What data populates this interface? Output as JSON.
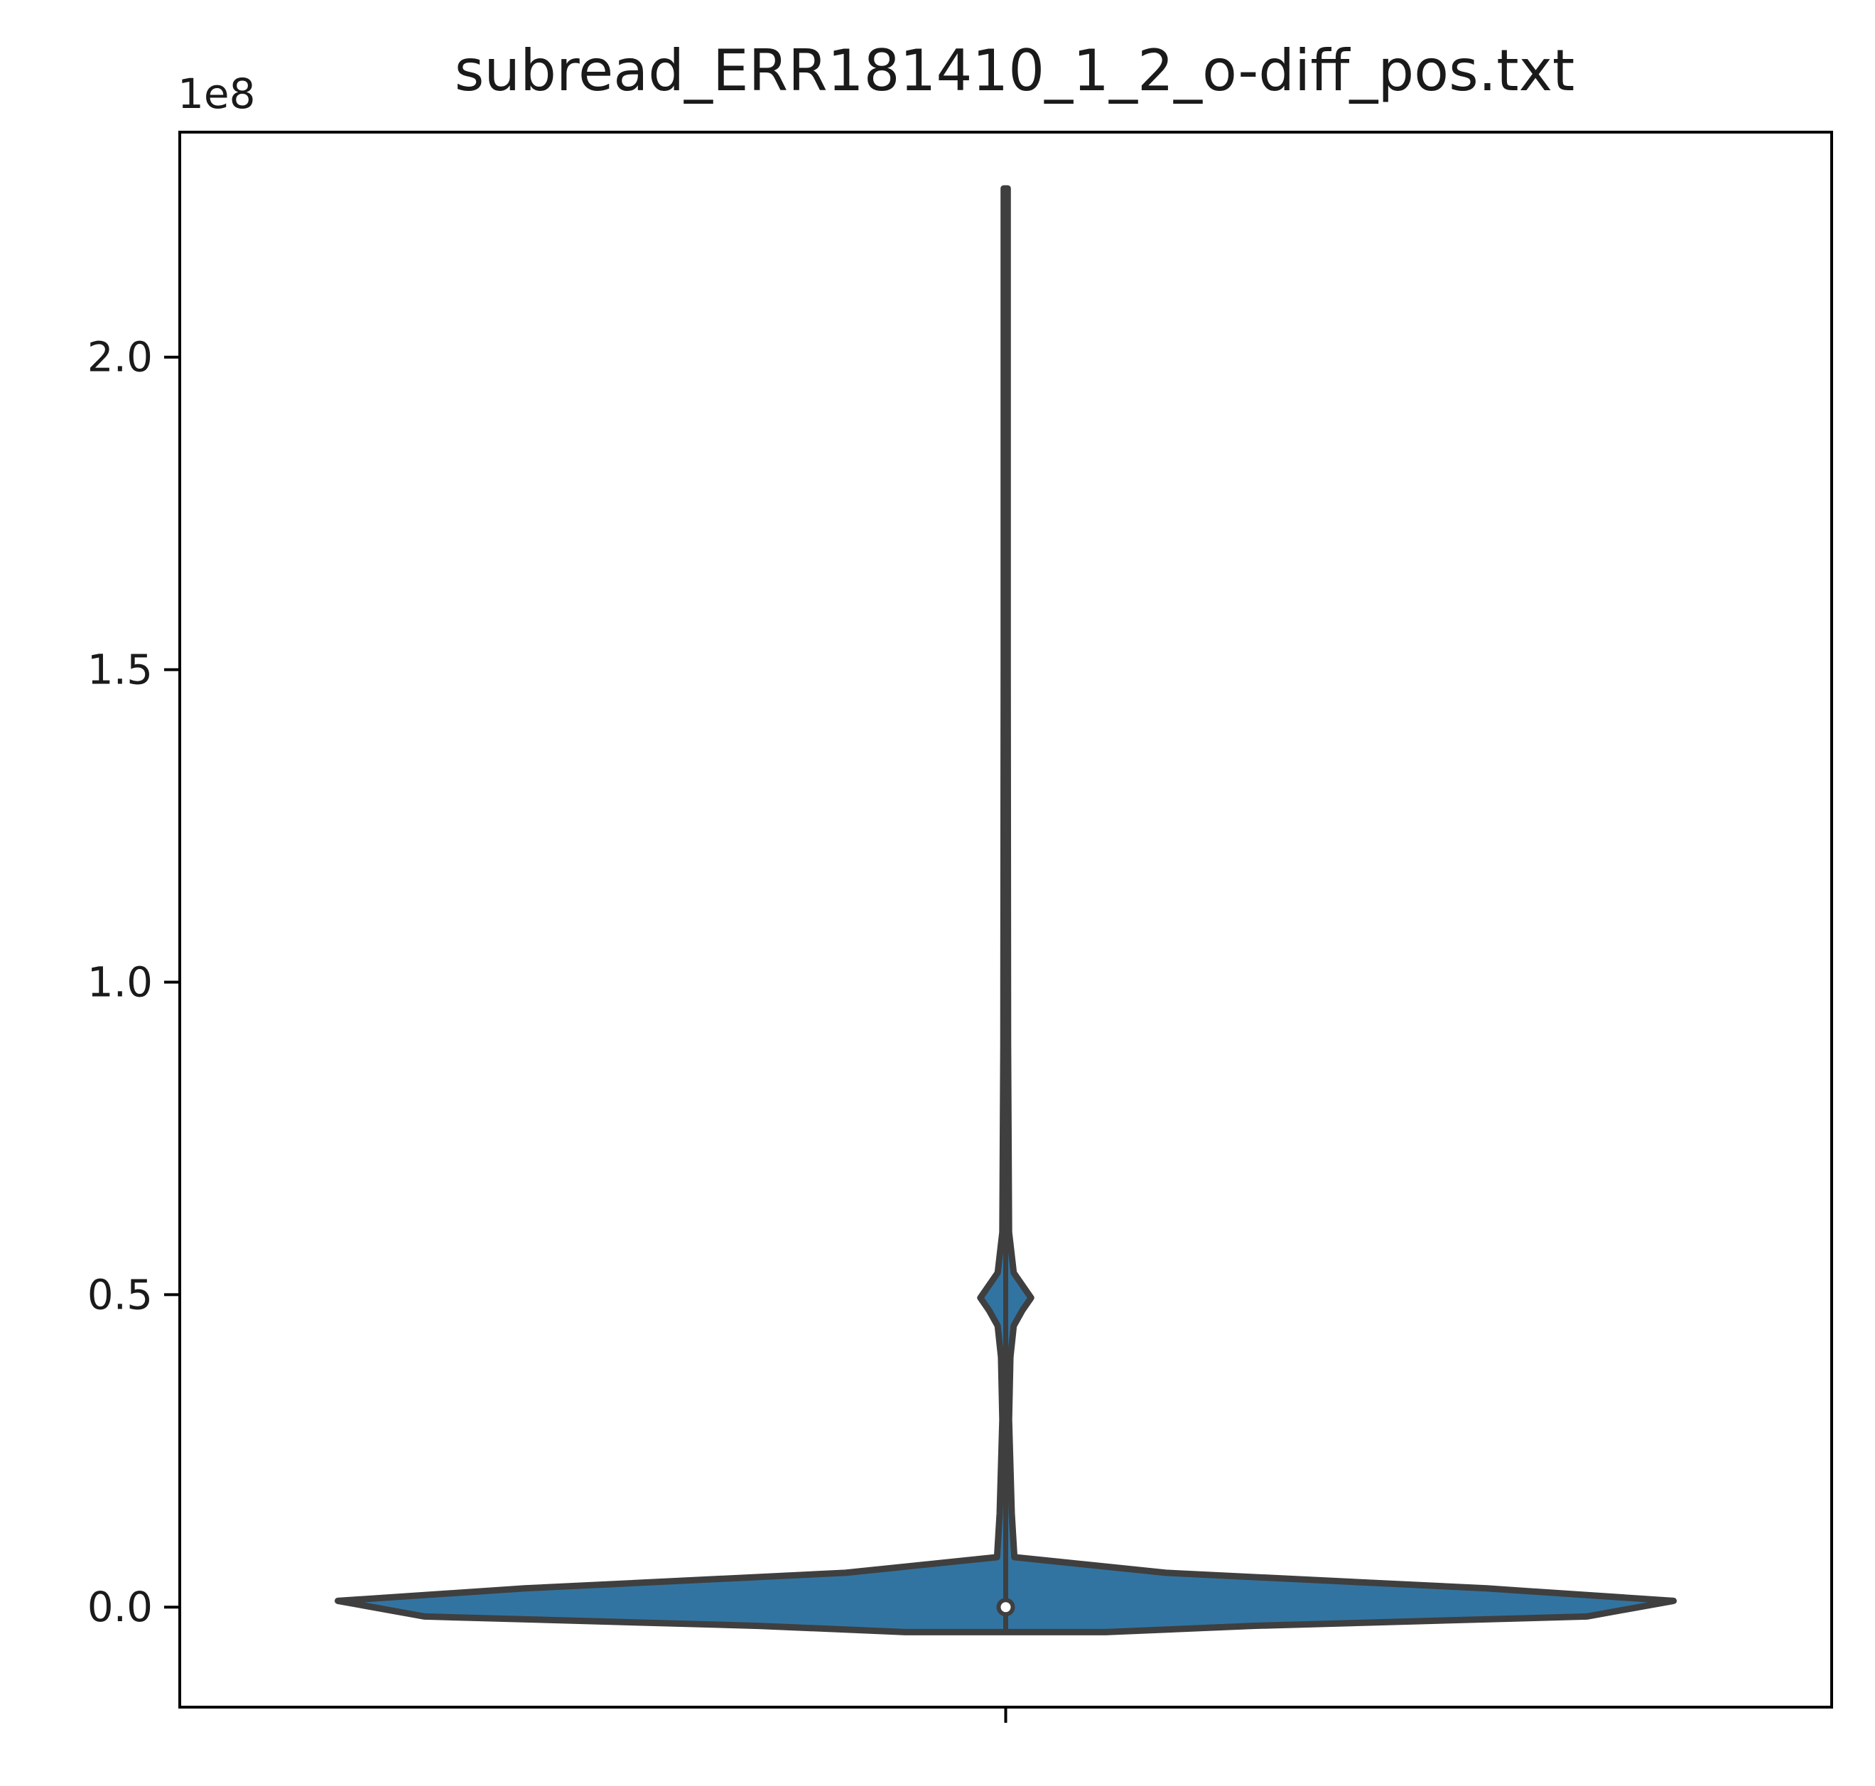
{
  "chart_data": {
    "type": "violin",
    "title": "subread_ERR181410_1_2_o-diff_pos.txt",
    "xlabel": "",
    "ylabel": "",
    "y_offset_label": "1e8",
    "ylim": [
      -0.16,
      2.36
    ],
    "yticks": [
      0.0,
      0.5,
      1.0,
      1.5,
      2.0
    ],
    "ytick_labels": [
      "0.0",
      "0.5",
      "1.0",
      "1.5",
      "2.0"
    ],
    "grid": false,
    "legend": "none",
    "colors": {
      "fill": "#3274a1",
      "outline": "#3f3f3f",
      "axes": "#000000"
    },
    "series": [
      {
        "median": 0.0,
        "max": 2.27,
        "profile": [
          [
            -0.04,
            0.15
          ],
          [
            -0.03,
            0.37
          ],
          [
            -0.015,
            0.87
          ],
          [
            0.01,
            1.0
          ],
          [
            0.03,
            0.72
          ],
          [
            0.055,
            0.24
          ],
          [
            0.08,
            0.013
          ],
          [
            0.15,
            0.009
          ],
          [
            0.3,
            0.005
          ],
          [
            0.4,
            0.007
          ],
          [
            0.45,
            0.012
          ],
          [
            0.475,
            0.025
          ],
          [
            0.495,
            0.038
          ],
          [
            0.515,
            0.025
          ],
          [
            0.535,
            0.012
          ],
          [
            0.6,
            0.005
          ],
          [
            0.9,
            0.0035
          ],
          [
            1.5,
            0.003
          ],
          [
            2.27,
            0.003
          ]
        ]
      }
    ]
  }
}
